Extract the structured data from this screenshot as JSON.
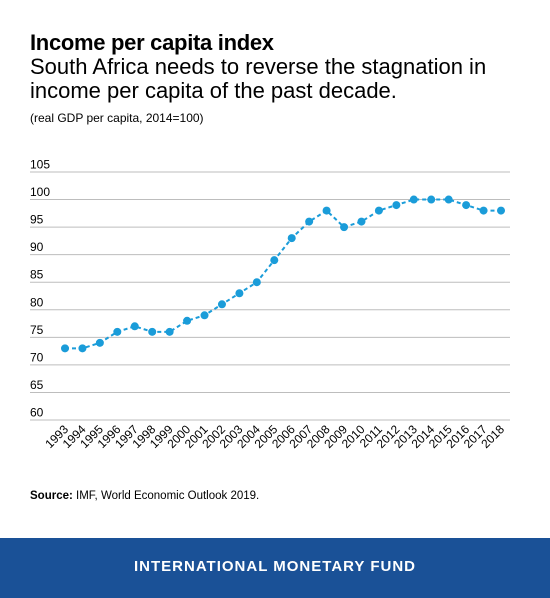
{
  "header": {
    "title": "Income per capita index",
    "subtitle": "South Africa needs to reverse the stagnation in income per capita of the past decade.",
    "unit_note": "(real GDP per capita, 2014=100)"
  },
  "source": {
    "label": "Source:",
    "text": "IMF, World Economic Outlook 2019."
  },
  "footer": {
    "text": "INTERNATIONAL MONETARY FUND",
    "background": "#1a5197"
  },
  "colors": {
    "series": "#1a9cd9",
    "grid": "#bdbdbd"
  },
  "chart_data": {
    "type": "line",
    "title": "Income per capita index",
    "xlabel": "",
    "ylabel": "",
    "ylim": [
      60,
      105
    ],
    "yticks": [
      60,
      65,
      70,
      75,
      80,
      85,
      90,
      95,
      100,
      105
    ],
    "grid": true,
    "legend": "none",
    "x": [
      "1993",
      "1994",
      "1995",
      "1996",
      "1997",
      "1998",
      "1999",
      "2000",
      "2001",
      "2002",
      "2003",
      "2004",
      "2005",
      "2006",
      "2007",
      "2008",
      "2009",
      "2010",
      "2011",
      "2012",
      "2013",
      "2014",
      "2015",
      "2016",
      "2017",
      "2018"
    ],
    "series": [
      {
        "values": [
          73,
          73,
          74,
          76,
          77,
          76,
          76,
          78,
          79,
          81,
          83,
          85,
          89,
          93,
          96,
          98,
          95,
          96,
          98,
          99,
          100,
          100,
          100,
          99,
          98,
          98
        ]
      }
    ]
  }
}
